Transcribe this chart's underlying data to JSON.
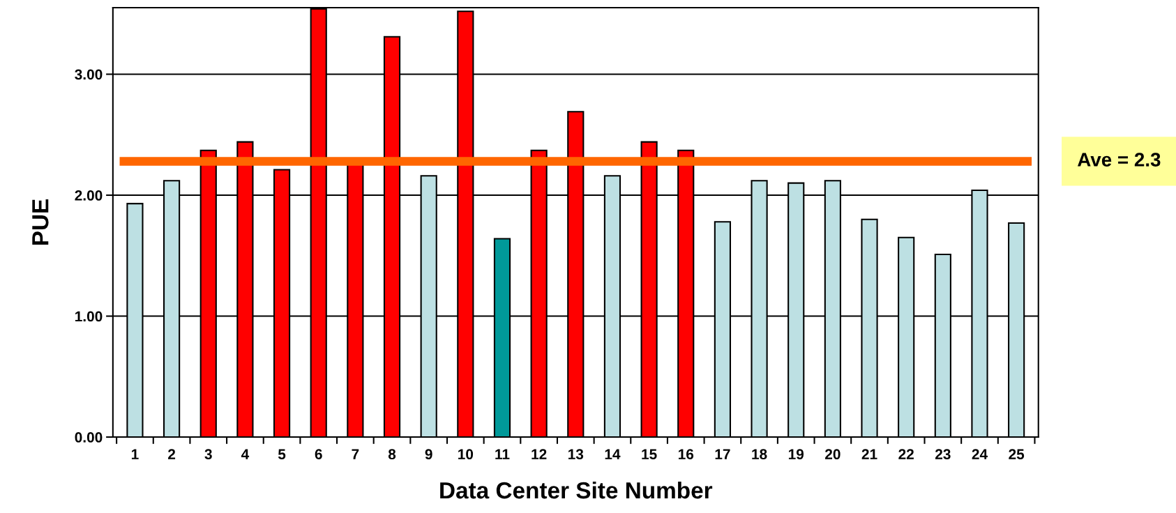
{
  "chart_data": {
    "type": "bar",
    "xlabel": "Data Center Site Number",
    "ylabel": "PUE",
    "categories": [
      "1",
      "2",
      "3",
      "4",
      "5",
      "6",
      "7",
      "8",
      "9",
      "10",
      "11",
      "12",
      "13",
      "14",
      "15",
      "16",
      "17",
      "18",
      "19",
      "20",
      "21",
      "22",
      "23",
      "24",
      "25"
    ],
    "values": [
      1.93,
      2.12,
      2.37,
      2.44,
      2.21,
      3.54,
      2.27,
      3.31,
      2.16,
      3.52,
      1.64,
      2.37,
      2.69,
      2.16,
      2.44,
      2.37,
      1.78,
      2.12,
      2.1,
      2.12,
      1.8,
      1.65,
      1.51,
      2.04,
      1.77
    ],
    "colors": [
      "#bde0e3",
      "#bde0e3",
      "#ff0000",
      "#ff0000",
      "#ff0000",
      "#ff0000",
      "#ff0000",
      "#ff0000",
      "#bde0e3",
      "#ff0000",
      "#009999",
      "#ff0000",
      "#ff0000",
      "#bde0e3",
      "#ff0000",
      "#ff0000",
      "#bde0e3",
      "#bde0e3",
      "#bde0e3",
      "#bde0e3",
      "#bde0e3",
      "#bde0e3",
      "#bde0e3",
      "#bde0e3",
      "#bde0e3"
    ],
    "ylim": [
      0,
      3.55
    ],
    "yticks": [
      {
        "value": 0,
        "label": "0.00"
      },
      {
        "value": 1,
        "label": "1.00"
      },
      {
        "value": 2,
        "label": "2.00"
      },
      {
        "value": 3,
        "label": "3.00"
      }
    ],
    "grid": "y",
    "ref_lines": [
      {
        "axis": "y",
        "value": 2.28,
        "label": "Ave = 2.3",
        "color": "#ff6600"
      }
    ]
  }
}
